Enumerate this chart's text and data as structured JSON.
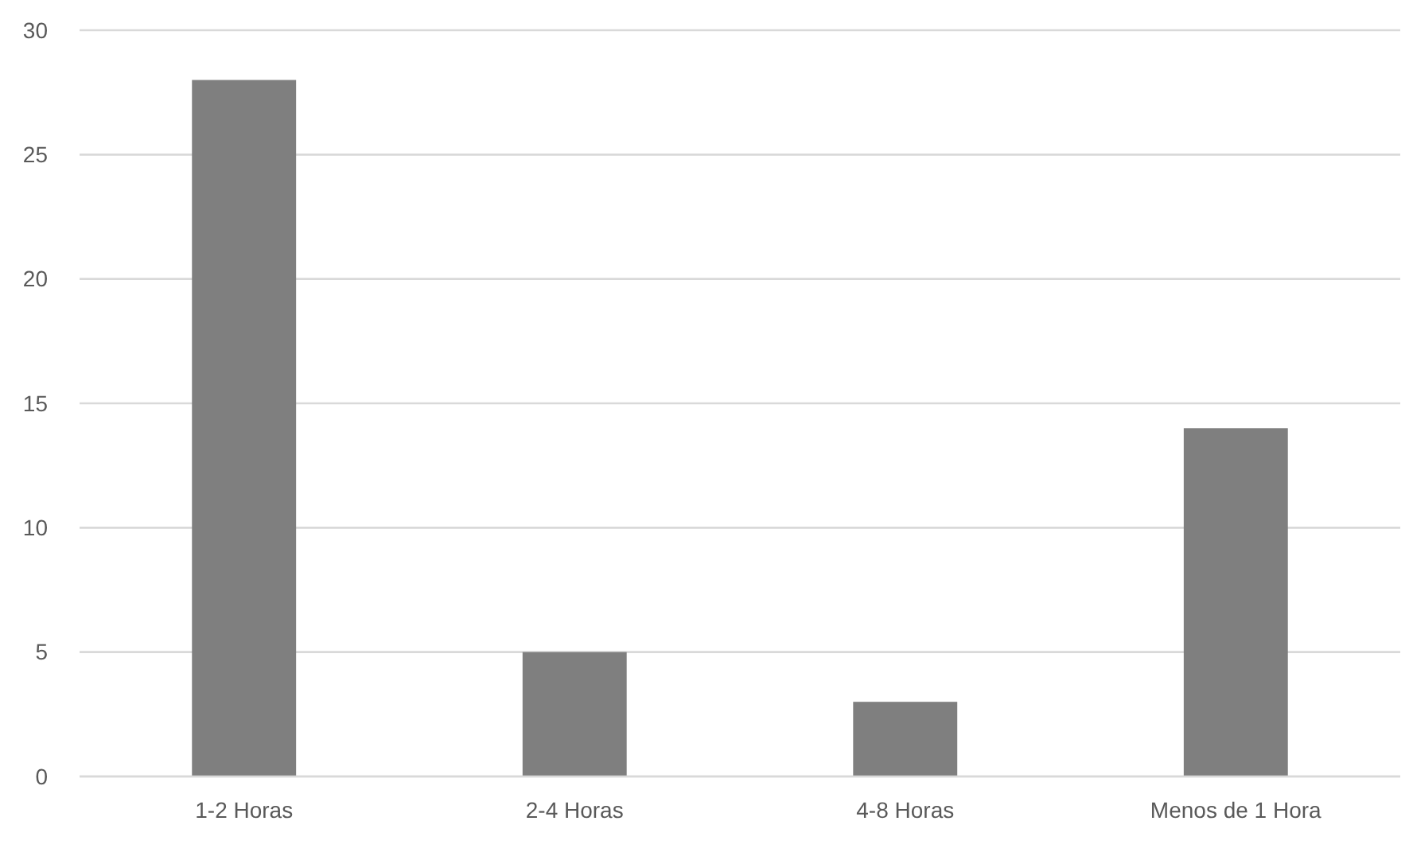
{
  "chart_data": {
    "type": "bar",
    "categories": [
      "1-2 Horas",
      "2-4 Horas",
      "4-8 Horas",
      "Menos de 1 Hora"
    ],
    "values": [
      28,
      5,
      3,
      14
    ],
    "color": "#7f7f7f",
    "ylim": [
      0,
      30
    ],
    "yticks": [
      0,
      5,
      10,
      15,
      20,
      25,
      30
    ],
    "grid": "y"
  }
}
